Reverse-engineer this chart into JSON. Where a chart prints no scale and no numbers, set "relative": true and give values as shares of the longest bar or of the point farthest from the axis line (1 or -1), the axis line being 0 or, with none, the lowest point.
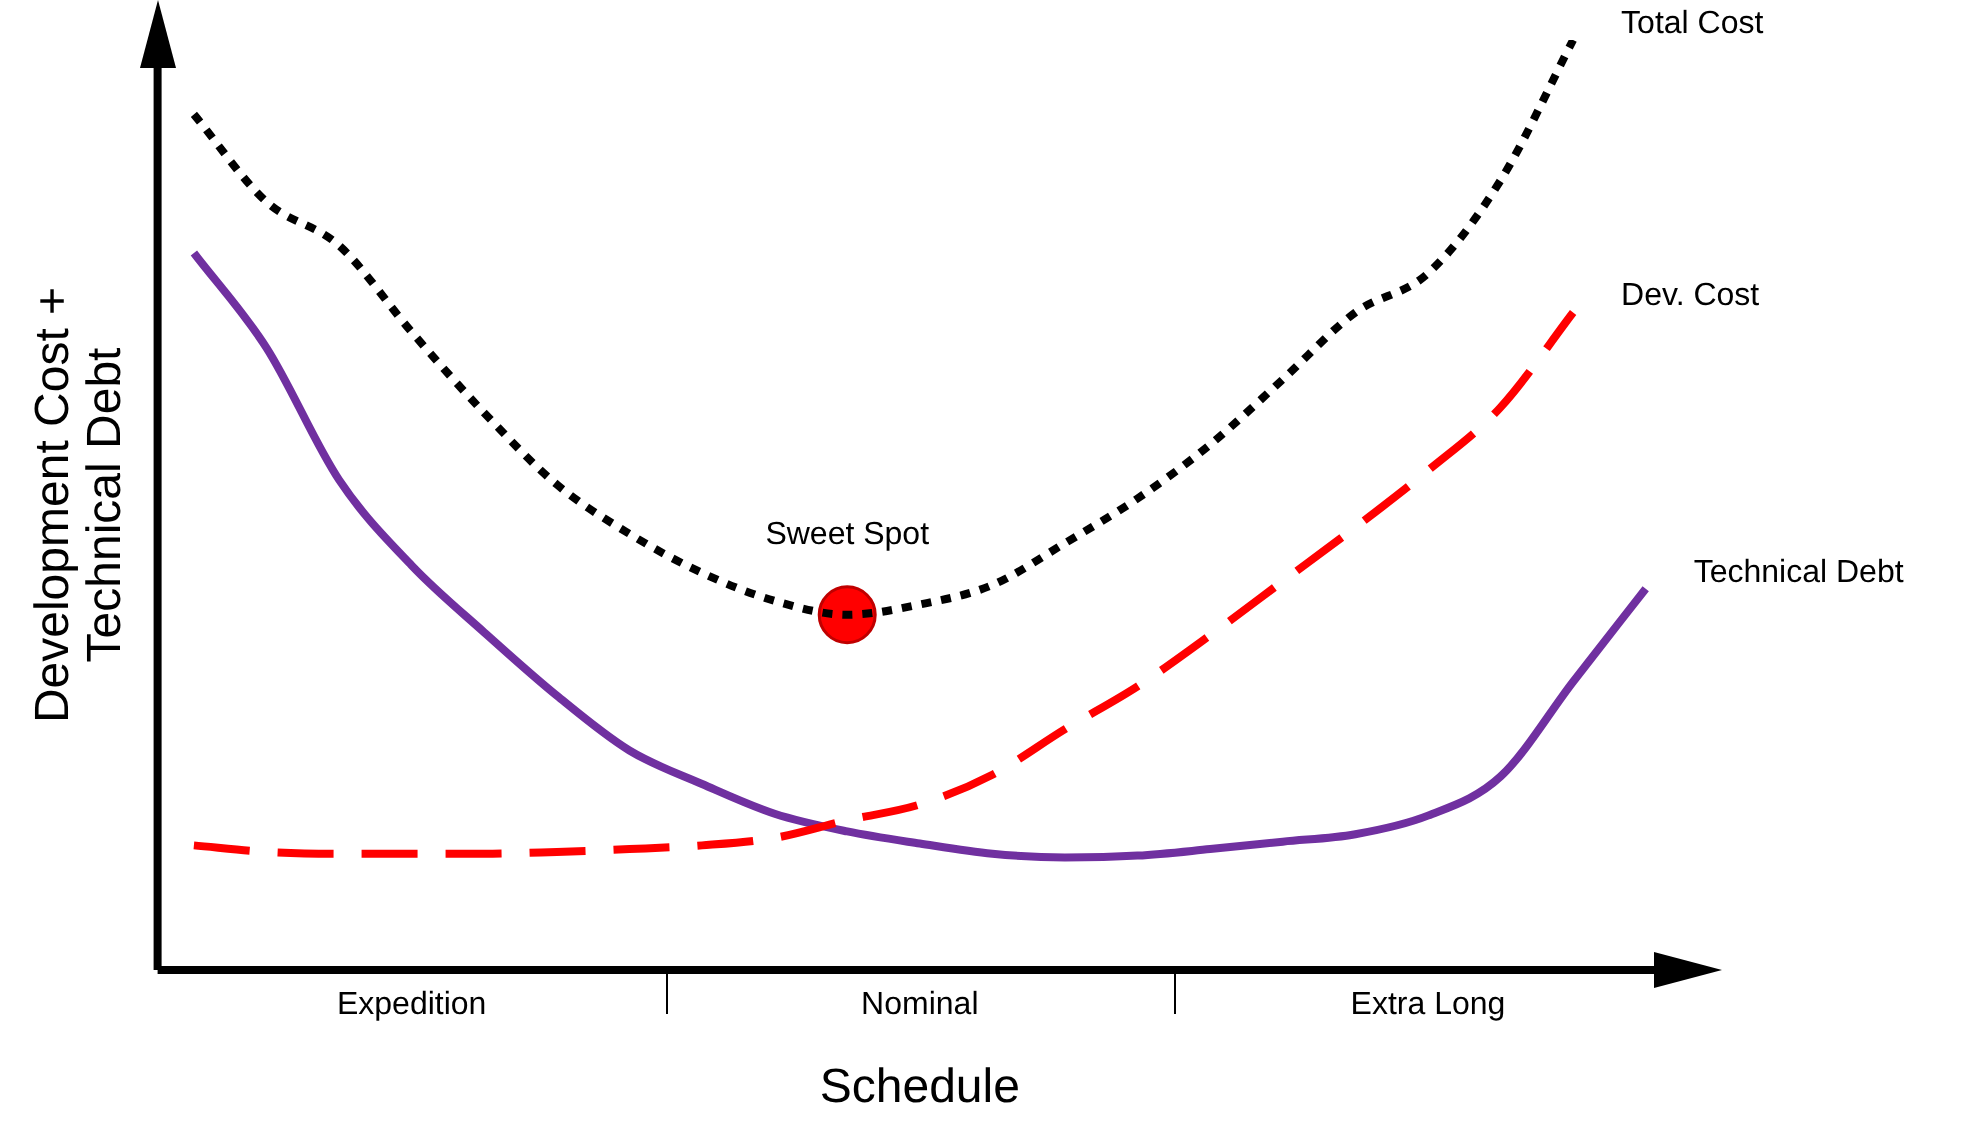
{
  "chart_data": {
    "type": "line",
    "relative": true,
    "xlabel": "Schedule",
    "ylabel": "Development Cost +\nTechnical Debt",
    "categories": [
      null,
      null,
      null,
      "Expedition",
      null,
      null,
      null,
      null,
      null,
      null,
      "Nominal",
      null,
      null,
      null,
      null,
      null,
      null,
      "Extra Long",
      null,
      null,
      null
    ],
    "legend": false,
    "grid": false,
    "marker": "none",
    "series": [
      {
        "name": "Total Cost",
        "color": "#000000",
        "line_style": "dotted",
        "values": [
          0.92,
          0.826,
          0.779,
          0.686,
          0.599,
          0.522,
          0.469,
          0.427,
          0.397,
          0.382,
          0.393,
          0.414,
          0.459,
          0.507,
          0.565,
          0.635,
          0.707,
          0.749,
          0.849,
          1.0,
          null
        ]
      },
      {
        "name": "Dev. Cost",
        "color": "#ff0000",
        "line_style": "dashed",
        "values": [
          0.134,
          0.127,
          0.125,
          0.125,
          0.125,
          0.127,
          0.13,
          0.134,
          0.142,
          0.161,
          0.178,
          0.21,
          0.259,
          0.305,
          0.36,
          0.418,
          0.476,
          0.537,
          0.605,
          0.707,
          null
        ]
      },
      {
        "name": "Technical Debt",
        "color": "#7030a0",
        "line_style": "solid",
        "values": [
          0.771,
          0.669,
          0.527,
          0.435,
          0.363,
          0.295,
          0.236,
          0.2,
          0.168,
          0.149,
          0.136,
          0.125,
          0.121,
          0.123,
          0.13,
          0.138,
          0.146,
          0.166,
          0.208,
          0.31,
          0.41
        ]
      },
      {
        "type": "scatter",
        "marker": "circle",
        "color": "#ff0000",
        "values": [
          null,
          null,
          null,
          null,
          null,
          null,
          null,
          null,
          null,
          0.382,
          null,
          null,
          null,
          null,
          null,
          null,
          null,
          null,
          null,
          null,
          null
        ]
      }
    ],
    "annotations": [
      {
        "text": "Sweet Spot",
        "y": 0.382
      }
    ]
  }
}
